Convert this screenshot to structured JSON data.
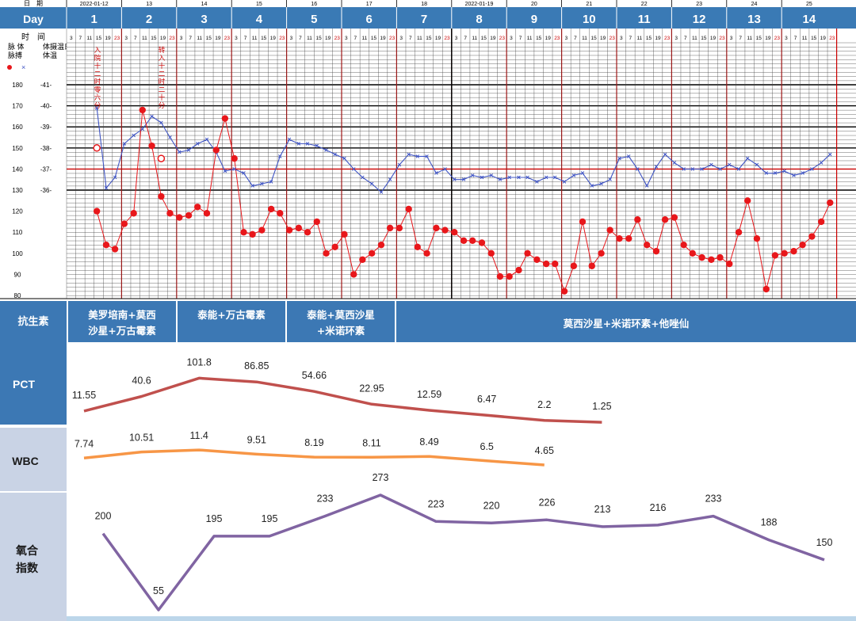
{
  "header": {
    "date_label": "日　期",
    "day_label": "Day",
    "hour_label": "时　间",
    "pulse_label": "脉搏",
    "temp_label": "体温",
    "pulse_col_label": "脉 体",
    "temp_col_label": "体摄温氏",
    "dates": [
      "2022-01-12",
      "13",
      "14",
      "15",
      "16",
      "17",
      "18",
      "2022-01-19",
      "20",
      "21",
      "22",
      "23",
      "24",
      "25"
    ],
    "days": [
      "1",
      "2",
      "3",
      "4",
      "5",
      "6",
      "7",
      "8",
      "9",
      "10",
      "11",
      "12",
      "13",
      "14"
    ],
    "hours": [
      "3",
      "7",
      "11",
      "15",
      "19",
      "23"
    ]
  },
  "vitals_axes": {
    "pulse_ticks": [
      "180",
      "170",
      "160",
      "150",
      "140",
      "130",
      "120",
      "110",
      "100",
      "90",
      "80"
    ],
    "temp_ticks": [
      "-41-",
      "-40-",
      "-39-",
      "-38-",
      "-37-",
      "-36-"
    ]
  },
  "vital_notes": {
    "admit": "入院十二时零六分",
    "transfer": "转入十二时二十分"
  },
  "antibiotics": {
    "label": "抗生素",
    "regimens": [
      {
        "text_line1": "美罗培南+莫西",
        "text_line2": "沙星+万古霉素"
      },
      {
        "text_line1": "泰能+万古霉素",
        "text_line2": ""
      },
      {
        "text_line1": "泰能+莫西沙星",
        "text_line2": "+米诺环素"
      },
      {
        "text_line1": "莫西沙星+米诺环素+他唑仙",
        "text_line2": ""
      }
    ]
  },
  "colors": {
    "header_blue": "#3a7ab5",
    "label_blue": "#3c78b4",
    "label_light": "#c9d3e5",
    "pct_line": "#c0504d",
    "wbc_line": "#f79646",
    "ox_line": "#8064a2",
    "pulse_red": "#e8171b",
    "temp_blue": "#3f54c4",
    "grid_red": "#cc0000"
  },
  "chart_data": [
    {
      "type": "line",
      "title": "",
      "x": [
        "1",
        "2",
        "3",
        "4",
        "5",
        "6",
        "7",
        "8",
        "9",
        "10",
        "11",
        "12",
        "13",
        "14"
      ],
      "series": [
        {
          "name": "PCT",
          "points": [
            [
              1,
              11.55
            ],
            [
              2,
              40.6
            ],
            [
              3,
              101.8
            ],
            [
              4,
              86.85
            ],
            [
              5,
              54.66
            ],
            [
              6,
              22.95
            ],
            [
              7,
              12.59
            ],
            [
              8,
              6.47
            ],
            [
              9,
              2.2
            ],
            [
              10,
              1.25
            ]
          ]
        },
        {
          "name": "WBC",
          "points": [
            [
              1,
              7.74
            ],
            [
              2,
              10.51
            ],
            [
              3,
              11.4
            ],
            [
              4,
              9.51
            ],
            [
              5,
              8.19
            ],
            [
              6,
              8.11
            ],
            [
              7,
              8.49
            ],
            [
              8,
              6.5
            ],
            [
              9,
              4.65
            ]
          ]
        },
        {
          "name": "氧合指数",
          "points": [
            [
              1,
              200
            ],
            [
              2,
              55
            ],
            [
              3,
              195
            ],
            [
              4,
              195
            ],
            [
              5,
              233
            ],
            [
              6,
              273
            ],
            [
              7,
              223
            ],
            [
              8,
              220
            ],
            [
              9,
              226
            ],
            [
              10,
              213
            ],
            [
              11,
              216
            ],
            [
              12,
              233
            ],
            [
              13,
              188
            ],
            [
              14,
              150
            ]
          ]
        }
      ]
    },
    {
      "type": "line",
      "title": "",
      "xlabel": "时间",
      "x_unit": "day index with 6 readings per day at 3,7,11,15,19,23",
      "series": [
        {
          "name": "脉搏",
          "points": [
            [
              1.55,
              120
            ],
            [
              1.72,
              104
            ],
            [
              1.88,
              102
            ],
            [
              2.05,
              114
            ],
            [
              2.22,
              119
            ],
            [
              2.38,
              168
            ],
            [
              2.55,
              151
            ],
            [
              2.72,
              127
            ],
            [
              2.88,
              119
            ],
            [
              3.05,
              117
            ],
            [
              3.22,
              118
            ],
            [
              3.38,
              122
            ],
            [
              3.55,
              119
            ],
            [
              3.72,
              149
            ],
            [
              3.88,
              164
            ],
            [
              4.05,
              145
            ],
            [
              4.22,
              110
            ],
            [
              4.38,
              109
            ],
            [
              4.55,
              111
            ],
            [
              4.72,
              121
            ],
            [
              4.88,
              119
            ],
            [
              5.05,
              111
            ],
            [
              5.22,
              112
            ],
            [
              5.38,
              110
            ],
            [
              5.55,
              115
            ],
            [
              5.72,
              100
            ],
            [
              5.88,
              103
            ],
            [
              6.05,
              109
            ],
            [
              6.22,
              90
            ],
            [
              6.38,
              97
            ],
            [
              6.55,
              100
            ],
            [
              6.72,
              104
            ],
            [
              6.88,
              112
            ],
            [
              7.05,
              112
            ],
            [
              7.22,
              121
            ],
            [
              7.38,
              103
            ],
            [
              7.55,
              100
            ],
            [
              7.72,
              112
            ],
            [
              7.88,
              111
            ],
            [
              8.05,
              110
            ],
            [
              8.22,
              106
            ],
            [
              8.38,
              106
            ],
            [
              8.55,
              105
            ],
            [
              8.72,
              100
            ],
            [
              8.88,
              89
            ],
            [
              9.05,
              89
            ],
            [
              9.22,
              92
            ],
            [
              9.38,
              100
            ],
            [
              9.55,
              97
            ],
            [
              9.72,
              95
            ],
            [
              9.88,
              95
            ],
            [
              10.05,
              82
            ],
            [
              10.22,
              94
            ],
            [
              10.38,
              115
            ],
            [
              10.55,
              94
            ],
            [
              10.72,
              100
            ],
            [
              10.88,
              111
            ],
            [
              11.05,
              107
            ],
            [
              11.22,
              107
            ],
            [
              11.38,
              116
            ],
            [
              11.55,
              104
            ],
            [
              11.72,
              101
            ],
            [
              11.88,
              116
            ],
            [
              12.05,
              117
            ],
            [
              12.22,
              104
            ],
            [
              12.38,
              100
            ],
            [
              12.55,
              98
            ],
            [
              12.72,
              97
            ],
            [
              12.88,
              98
            ],
            [
              13.05,
              95
            ],
            [
              13.22,
              110
            ],
            [
              13.38,
              125
            ],
            [
              13.55,
              107
            ],
            [
              13.72,
              83
            ],
            [
              13.88,
              99
            ],
            [
              14.05,
              100
            ],
            [
              14.22,
              101
            ],
            [
              14.38,
              104
            ],
            [
              14.55,
              108
            ],
            [
              14.72,
              115
            ],
            [
              14.88,
              124
            ]
          ]
        },
        {
          "name": "体温",
          "points": [
            [
              1.55,
              39.9
            ],
            [
              1.72,
              36.1
            ],
            [
              1.88,
              36.6
            ],
            [
              2.05,
              38.2
            ],
            [
              2.22,
              38.6
            ],
            [
              2.38,
              38.9
            ],
            [
              2.55,
              39.5
            ],
            [
              2.72,
              39.2
            ],
            [
              2.88,
              38.5
            ],
            [
              3.05,
              37.8
            ],
            [
              3.22,
              37.9
            ],
            [
              3.38,
              38.2
            ],
            [
              3.55,
              38.4
            ],
            [
              3.72,
              37.8
            ],
            [
              3.88,
              36.9
            ],
            [
              4.05,
              37.0
            ],
            [
              4.22,
              36.8
            ],
            [
              4.38,
              36.2
            ],
            [
              4.55,
              36.3
            ],
            [
              4.72,
              36.4
            ],
            [
              4.88,
              37.6
            ],
            [
              5.05,
              38.4
            ],
            [
              5.22,
              38.2
            ],
            [
              5.38,
              38.2
            ],
            [
              5.55,
              38.1
            ],
            [
              5.72,
              37.9
            ],
            [
              5.88,
              37.7
            ],
            [
              6.05,
              37.5
            ],
            [
              6.22,
              37.0
            ],
            [
              6.38,
              36.6
            ],
            [
              6.55,
              36.3
            ],
            [
              6.72,
              35.9
            ],
            [
              6.88,
              36.5
            ],
            [
              7.05,
              37.2
            ],
            [
              7.22,
              37.7
            ],
            [
              7.38,
              37.6
            ],
            [
              7.55,
              37.6
            ],
            [
              7.72,
              36.8
            ],
            [
              7.88,
              37.0
            ],
            [
              8.05,
              36.5
            ],
            [
              8.22,
              36.5
            ],
            [
              8.38,
              36.7
            ],
            [
              8.55,
              36.6
            ],
            [
              8.72,
              36.7
            ],
            [
              8.88,
              36.5
            ],
            [
              9.05,
              36.6
            ],
            [
              9.22,
              36.6
            ],
            [
              9.38,
              36.6
            ],
            [
              9.55,
              36.4
            ],
            [
              9.72,
              36.6
            ],
            [
              9.88,
              36.6
            ],
            [
              10.05,
              36.4
            ],
            [
              10.22,
              36.7
            ],
            [
              10.38,
              36.8
            ],
            [
              10.55,
              36.2
            ],
            [
              10.72,
              36.3
            ],
            [
              10.88,
              36.5
            ],
            [
              11.05,
              37.5
            ],
            [
              11.22,
              37.6
            ],
            [
              11.38,
              37.0
            ],
            [
              11.55,
              36.2
            ],
            [
              11.72,
              37.1
            ],
            [
              11.88,
              37.7
            ],
            [
              12.05,
              37.3
            ],
            [
              12.22,
              37.0
            ],
            [
              12.38,
              37.0
            ],
            [
              12.55,
              37.0
            ],
            [
              12.72,
              37.2
            ],
            [
              12.88,
              37.0
            ],
            [
              13.05,
              37.2
            ],
            [
              13.22,
              37.0
            ],
            [
              13.38,
              37.5
            ],
            [
              13.55,
              37.2
            ],
            [
              13.72,
              36.8
            ],
            [
              13.88,
              36.8
            ],
            [
              14.05,
              36.9
            ],
            [
              14.22,
              36.7
            ],
            [
              14.38,
              36.8
            ],
            [
              14.55,
              37.0
            ],
            [
              14.72,
              37.3
            ],
            [
              14.88,
              37.7
            ]
          ]
        }
      ]
    }
  ]
}
